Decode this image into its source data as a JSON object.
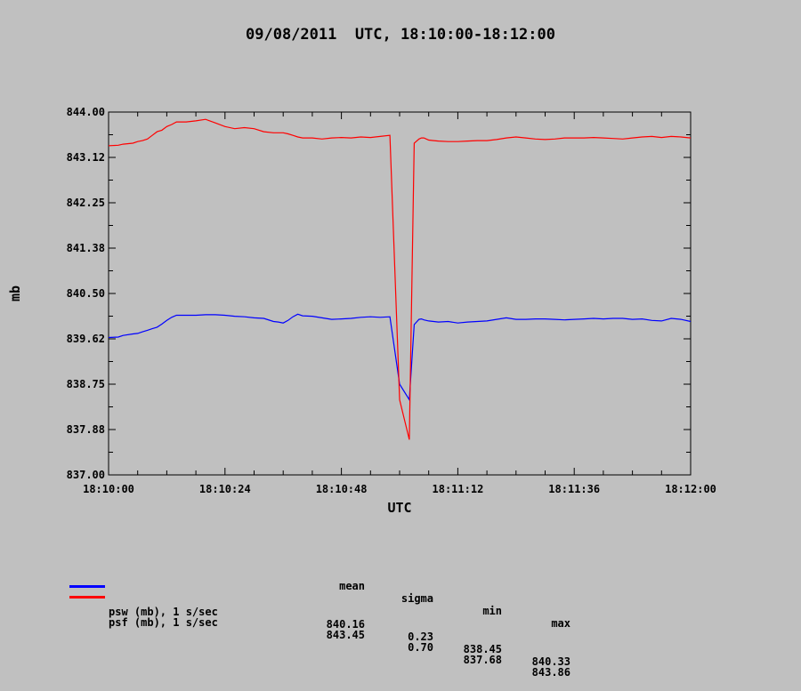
{
  "title": "09/08/2011  UTC, 18:10:00-18:12:00",
  "chart_data": {
    "type": "line",
    "xlabel": "UTC",
    "ylabel": "mb",
    "x_ticks": [
      "18:10:00",
      "18:10:24",
      "18:10:48",
      "18:11:12",
      "18:11:36",
      "18:12:00"
    ],
    "xlim_seconds": [
      0,
      120
    ],
    "y_ticks": [
      "844.00",
      "843.12",
      "842.25",
      "841.38",
      "840.50",
      "839.62",
      "838.75",
      "837.88",
      "837.00"
    ],
    "ylim": [
      837.0,
      844.0
    ],
    "grid": false,
    "series": [
      {
        "name": "psw (mb), 1 s/sec",
        "color": "#0000ff",
        "x": [
          0,
          2,
          3,
          5,
          6,
          7,
          8,
          9,
          10,
          11,
          12,
          13,
          14,
          15,
          16,
          18,
          20,
          22,
          24,
          26,
          28,
          30,
          32,
          34,
          35,
          36,
          37,
          38,
          39,
          40,
          42,
          44,
          46,
          48,
          50,
          52,
          54,
          56,
          58,
          60,
          62,
          63,
          64,
          64.5,
          65,
          65.5,
          66,
          67,
          68,
          70,
          72,
          74,
          76,
          78,
          80,
          82,
          84,
          86,
          88,
          90,
          92,
          94,
          96,
          98,
          100,
          102,
          104,
          106,
          108,
          110,
          112,
          114,
          116,
          118,
          120
        ],
        "y": [
          839.65,
          839.66,
          839.69,
          839.72,
          839.73,
          839.76,
          839.79,
          839.82,
          839.85,
          839.91,
          839.98,
          840.04,
          840.08,
          840.08,
          840.08,
          840.08,
          840.09,
          840.09,
          840.08,
          840.06,
          840.05,
          840.03,
          840.02,
          839.96,
          839.95,
          839.93,
          839.98,
          840.05,
          840.1,
          840.07,
          840.06,
          840.03,
          840.0,
          840.01,
          840.02,
          840.04,
          840.05,
          840.04,
          840.05,
          838.75,
          838.45,
          839.9,
          840.0,
          840.01,
          839.99,
          839.98,
          839.97,
          839.96,
          839.95,
          839.96,
          839.93,
          839.95,
          839.96,
          839.97,
          840.0,
          840.03,
          840.0,
          840.0,
          840.01,
          840.01,
          840.0,
          839.99,
          840.0,
          840.01,
          840.02,
          840.01,
          840.02,
          840.02,
          840.0,
          840.01,
          839.98,
          839.97,
          840.02,
          840.0,
          839.96
        ]
      },
      {
        "name": "psf (mb), 1 s/sec",
        "color": "#ff0000",
        "x": [
          0,
          2,
          3,
          5,
          6,
          7,
          8,
          9,
          10,
          11,
          12,
          13,
          14,
          15,
          16,
          18,
          20,
          22,
          24,
          26,
          28,
          30,
          32,
          34,
          35,
          36,
          37,
          38,
          39,
          40,
          42,
          44,
          46,
          48,
          50,
          52,
          54,
          56,
          58,
          60,
          62,
          63,
          64,
          64.5,
          65,
          65.5,
          66,
          67,
          68,
          70,
          72,
          74,
          76,
          78,
          80,
          82,
          84,
          86,
          88,
          90,
          92,
          94,
          96,
          98,
          100,
          102,
          104,
          106,
          108,
          110,
          112,
          114,
          116,
          118,
          120
        ],
        "y": [
          843.35,
          843.36,
          843.38,
          843.4,
          843.43,
          843.45,
          843.48,
          843.55,
          843.62,
          843.65,
          843.72,
          843.76,
          843.81,
          843.81,
          843.81,
          843.83,
          843.86,
          843.79,
          843.72,
          843.68,
          843.7,
          843.68,
          843.62,
          843.6,
          843.6,
          843.6,
          843.58,
          843.55,
          843.52,
          843.5,
          843.5,
          843.48,
          843.5,
          843.51,
          843.5,
          843.52,
          843.51,
          843.53,
          843.55,
          838.45,
          837.68,
          843.4,
          843.48,
          843.5,
          843.5,
          843.48,
          843.46,
          843.45,
          843.44,
          843.43,
          843.43,
          843.44,
          843.45,
          843.45,
          843.47,
          843.5,
          843.52,
          843.5,
          843.48,
          843.47,
          843.48,
          843.5,
          843.5,
          843.5,
          843.51,
          843.5,
          843.49,
          843.48,
          843.5,
          843.52,
          843.53,
          843.51,
          843.53,
          843.52,
          843.5
        ]
      }
    ]
  },
  "stats": {
    "headers": [
      "mean",
      "sigma",
      "min",
      "max"
    ],
    "rows": [
      {
        "name": "psw (mb), 1 s/sec",
        "color": "#0000ff",
        "values": [
          "840.16",
          "0.23",
          "838.45",
          "840.33"
        ]
      },
      {
        "name": "psf (mb), 1 s/sec",
        "color": "#ff0000",
        "values": [
          "843.45",
          "0.70",
          "837.68",
          "843.86"
        ]
      }
    ]
  }
}
